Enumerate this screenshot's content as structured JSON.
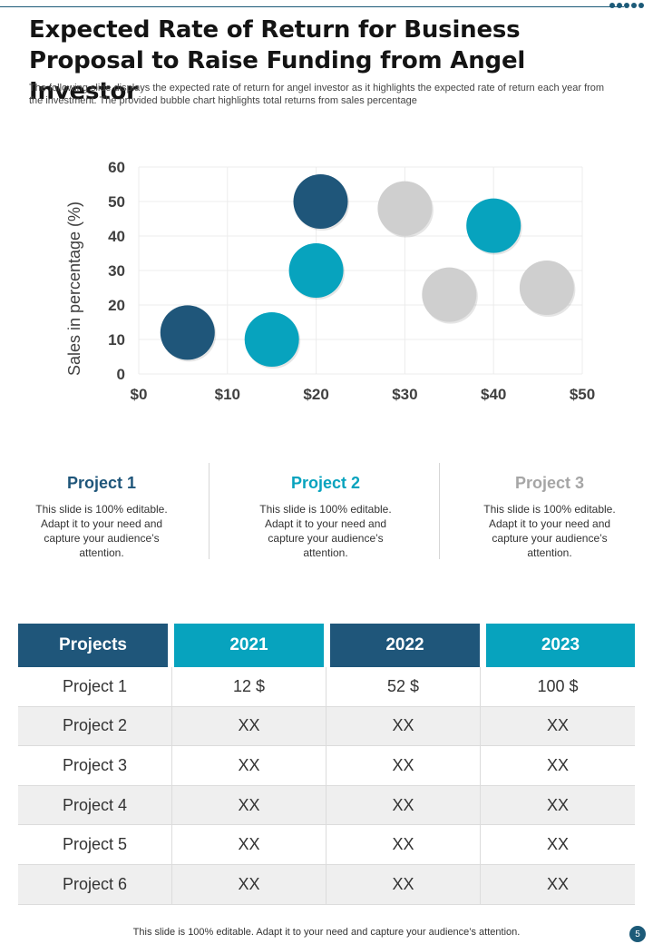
{
  "title": "Expected Rate of Return for Business Proposal to Raise Funding from Angel Investor",
  "subtitle": "The following slide displays the expected rate of return for angel investor as it highlights the expected rate of return each year from the investment. The provided bubble chart highlights total returns from sales percentage",
  "colors": {
    "dark": "#1f567a",
    "teal": "#07a3be",
    "gray": "#cfcfcf",
    "accent": "#1c5a78"
  },
  "chart_data": {
    "type": "scatter",
    "title": "",
    "xlabel": "",
    "ylabel": "Sales in percentage (%)",
    "xlim": [
      0,
      50
    ],
    "ylim": [
      0,
      60
    ],
    "x_ticks": [
      "$0",
      "$10",
      "$20",
      "$30",
      "$40",
      "$50"
    ],
    "y_ticks": [
      "0",
      "10",
      "20",
      "30",
      "40",
      "50",
      "60"
    ],
    "grid": true,
    "series": [
      {
        "color": "#1f567a",
        "points": [
          {
            "x": 5.5,
            "y": 12
          },
          {
            "x": 20.5,
            "y": 50
          }
        ]
      },
      {
        "color": "#07a3be",
        "points": [
          {
            "x": 15,
            "y": 10
          },
          {
            "x": 20,
            "y": 30
          },
          {
            "x": 40,
            "y": 43
          }
        ]
      },
      {
        "color": "#cfcfcf",
        "points": [
          {
            "x": 30,
            "y": 48
          },
          {
            "x": 35,
            "y": 23
          },
          {
            "x": 46,
            "y": 25
          }
        ]
      }
    ]
  },
  "projects": [
    {
      "title": "Project 1",
      "text": "This slide is 100% editable. Adapt it to your need and capture your audience’s attention.",
      "color": "#1f567a"
    },
    {
      "title": "Project 2",
      "text": "This slide is 100% editable. Adapt it to your need and capture your audience’s attention.",
      "color": "#07a3be"
    },
    {
      "title": "Project 3",
      "text": "This slide is 100% editable. Adapt it to your need and capture your audience’s attention.",
      "color": "#a6a6a6"
    }
  ],
  "table": {
    "headers": [
      "Projects",
      "2021",
      "2022",
      "2023"
    ],
    "rows": [
      [
        "Project 1",
        "12 $",
        "52 $",
        "100 $"
      ],
      [
        "Project 2",
        "XX",
        "XX",
        "XX"
      ],
      [
        "Project 3",
        "XX",
        "XX",
        "XX"
      ],
      [
        "Project 4",
        "XX",
        "XX",
        "XX"
      ],
      [
        "Project 5",
        "XX",
        "XX",
        "XX"
      ],
      [
        "Project 6",
        "XX",
        "XX",
        "XX"
      ]
    ]
  },
  "footer": "This slide is 100% editable. Adapt it to your need and capture your audience’s attention.",
  "page_number": "5"
}
